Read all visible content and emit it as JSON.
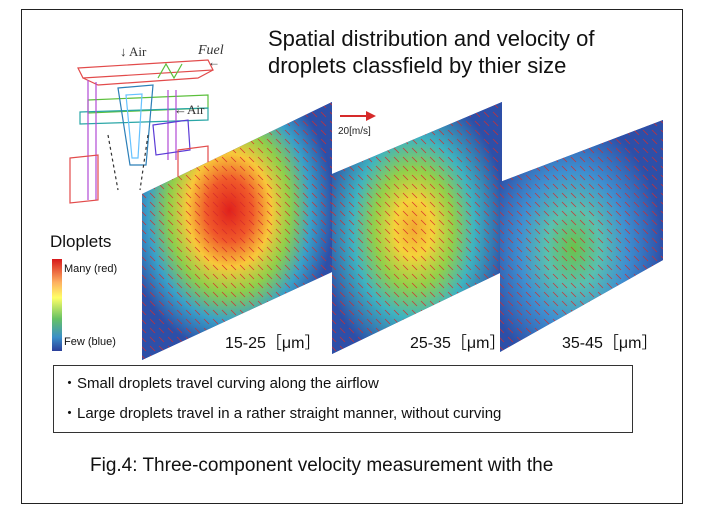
{
  "title": {
    "line1": "Spatial distribution and velocity of",
    "line2": "droplets classfield by thier size"
  },
  "nozzle_labels": {
    "air_top": "↓ Air",
    "fuel": "Fuel",
    "air_side": "←Air"
  },
  "velocity_reference": {
    "label": "20[m/s]",
    "color": "#d62a2a"
  },
  "legend": {
    "title": "Dloplets",
    "many": "Many (red)",
    "few": "Few (blue)",
    "colors": [
      "#d7191c",
      "#fdae61",
      "#ffff66",
      "#66c164",
      "#3a8fc8",
      "#2c3f9a"
    ]
  },
  "panels": [
    {
      "label": "15-25［μm］",
      "hotspot": "red"
    },
    {
      "label": "25-35［μm］",
      "hotspot": "yellow"
    },
    {
      "label": "35-45［μm］",
      "hotspot": "green"
    }
  ],
  "notes": [
    "・Small droplets travel curving along the airflow",
    "・Large droplets travel in a rather straight manner, without curving"
  ],
  "caption": "Fig.4: Three-component velocity measurement with the"
}
